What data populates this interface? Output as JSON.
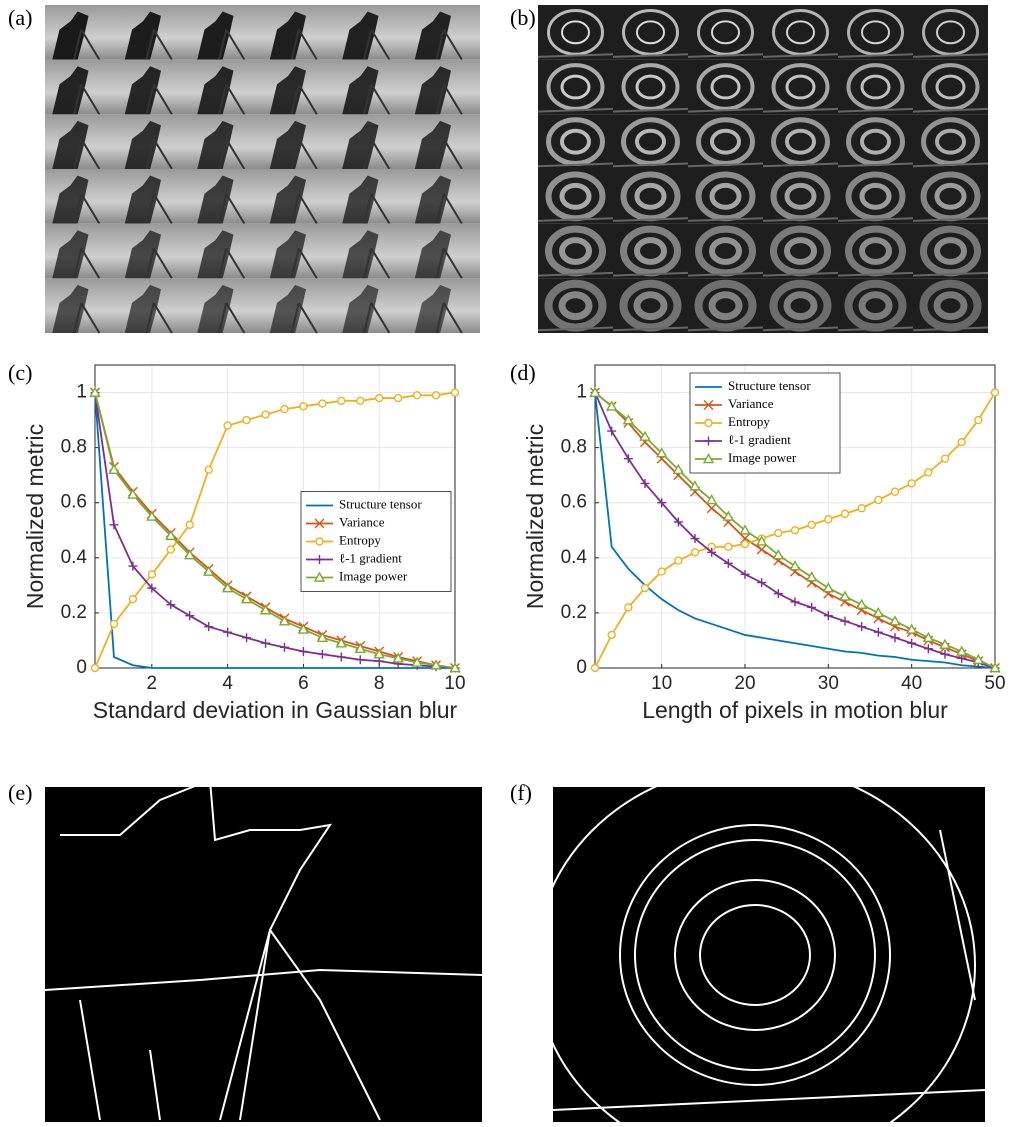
{
  "panel_labels": [
    "(a)",
    "(b)",
    "(c)",
    "(d)",
    "(e)",
    "(f)"
  ],
  "chart_data": [
    {
      "type": "line",
      "xlabel": "Standard deviation in Gaussian blur",
      "ylabel": "Normalized metric",
      "x": [
        0.5,
        1,
        1.5,
        2,
        2.5,
        3,
        3.5,
        4,
        4.5,
        5,
        5.5,
        6,
        6.5,
        7,
        7.5,
        8,
        8.5,
        9,
        9.5,
        10
      ],
      "xlim": [
        0.5,
        10
      ],
      "xticks": [
        2,
        4,
        6,
        8,
        10
      ],
      "ylim": [
        0,
        1.1
      ],
      "yticks": [
        0,
        0.2,
        0.4,
        0.6,
        0.8,
        1
      ],
      "grid": true,
      "legend": "right",
      "series": [
        {
          "name": "Structure tensor",
          "color": "#0072bd",
          "marker": "none",
          "values": [
            1,
            0.04,
            0.01,
            0,
            0,
            0,
            0,
            0,
            0,
            0,
            0,
            0,
            0,
            0,
            0,
            0,
            0,
            0,
            0,
            0
          ]
        },
        {
          "name": "Variance",
          "color": "#d95319",
          "marker": "x",
          "values": [
            1,
            0.73,
            0.64,
            0.56,
            0.49,
            0.42,
            0.36,
            0.3,
            0.26,
            0.22,
            0.18,
            0.15,
            0.12,
            0.1,
            0.08,
            0.06,
            0.04,
            0.025,
            0.01,
            0
          ]
        },
        {
          "name": "Entropy",
          "color": "#edb120",
          "marker": "o",
          "values": [
            0,
            0.16,
            0.25,
            0.34,
            0.43,
            0.52,
            0.72,
            0.88,
            0.9,
            0.92,
            0.94,
            0.95,
            0.96,
            0.97,
            0.97,
            0.98,
            0.98,
            0.99,
            0.99,
            1
          ]
        },
        {
          "name": "ℓ-1 gradient",
          "color": "#7e2f8e",
          "marker": "+",
          "values": [
            1,
            0.52,
            0.37,
            0.29,
            0.23,
            0.19,
            0.15,
            0.13,
            0.11,
            0.09,
            0.075,
            0.06,
            0.05,
            0.04,
            0.03,
            0.025,
            0.015,
            0.01,
            0.005,
            0
          ]
        },
        {
          "name": "Image power",
          "color": "#77ac30",
          "marker": "^",
          "values": [
            1,
            0.72,
            0.63,
            0.55,
            0.48,
            0.41,
            0.35,
            0.29,
            0.25,
            0.21,
            0.17,
            0.14,
            0.11,
            0.09,
            0.07,
            0.05,
            0.035,
            0.02,
            0.01,
            0
          ]
        }
      ]
    },
    {
      "type": "line",
      "xlabel": "Length of pixels in motion blur",
      "ylabel": "Normalized metric",
      "x": [
        2,
        4,
        6,
        8,
        10,
        12,
        14,
        16,
        18,
        20,
        22,
        24,
        26,
        28,
        30,
        32,
        34,
        36,
        38,
        40,
        42,
        44,
        46,
        48,
        50
      ],
      "xlim": [
        2,
        50
      ],
      "xticks": [
        10,
        20,
        30,
        40,
        50
      ],
      "ylim": [
        0,
        1.1
      ],
      "yticks": [
        0,
        0.2,
        0.4,
        0.6,
        0.8,
        1
      ],
      "grid": true,
      "legend": "top",
      "series": [
        {
          "name": "Structure tensor",
          "color": "#0072bd",
          "marker": "none",
          "values": [
            1,
            0.44,
            0.36,
            0.3,
            0.25,
            0.21,
            0.18,
            0.16,
            0.14,
            0.12,
            0.11,
            0.1,
            0.09,
            0.08,
            0.07,
            0.06,
            0.055,
            0.045,
            0.04,
            0.03,
            0.025,
            0.02,
            0.01,
            0.005,
            0
          ]
        },
        {
          "name": "Variance",
          "color": "#d95319",
          "marker": "x",
          "values": [
            1,
            0.95,
            0.89,
            0.82,
            0.76,
            0.7,
            0.64,
            0.58,
            0.53,
            0.47,
            0.43,
            0.39,
            0.35,
            0.31,
            0.27,
            0.24,
            0.21,
            0.18,
            0.15,
            0.13,
            0.1,
            0.075,
            0.05,
            0.025,
            0
          ]
        },
        {
          "name": "Entropy",
          "color": "#edb120",
          "marker": "o",
          "values": [
            0,
            0.12,
            0.22,
            0.29,
            0.35,
            0.39,
            0.42,
            0.44,
            0.44,
            0.45,
            0.47,
            0.49,
            0.5,
            0.52,
            0.54,
            0.56,
            0.58,
            0.61,
            0.64,
            0.67,
            0.71,
            0.76,
            0.82,
            0.9,
            1
          ]
        },
        {
          "name": "ℓ-1 gradient",
          "color": "#7e2f8e",
          "marker": "+",
          "values": [
            1,
            0.86,
            0.76,
            0.67,
            0.6,
            0.53,
            0.47,
            0.42,
            0.38,
            0.34,
            0.31,
            0.27,
            0.24,
            0.22,
            0.19,
            0.17,
            0.15,
            0.13,
            0.11,
            0.09,
            0.07,
            0.05,
            0.035,
            0.02,
            0
          ]
        },
        {
          "name": "Image power",
          "color": "#77ac30",
          "marker": "^",
          "values": [
            1,
            0.95,
            0.9,
            0.84,
            0.78,
            0.72,
            0.66,
            0.61,
            0.55,
            0.5,
            0.46,
            0.41,
            0.37,
            0.33,
            0.29,
            0.26,
            0.23,
            0.2,
            0.17,
            0.14,
            0.11,
            0.085,
            0.06,
            0.03,
            0
          ]
        }
      ]
    }
  ]
}
